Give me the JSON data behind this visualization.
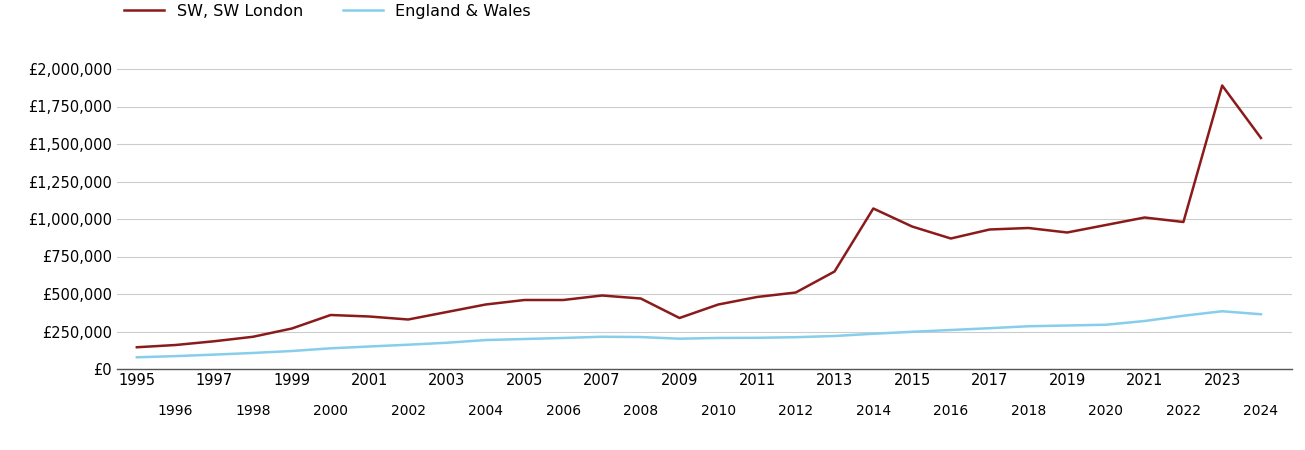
{
  "sw_london": {
    "years": [
      1995,
      1996,
      1997,
      1998,
      1999,
      2000,
      2001,
      2002,
      2003,
      2004,
      2005,
      2006,
      2007,
      2008,
      2009,
      2010,
      2011,
      2012,
      2013,
      2014,
      2015,
      2016,
      2017,
      2018,
      2019,
      2020,
      2021,
      2022,
      2023,
      2024
    ],
    "values": [
      145000,
      160000,
      185000,
      215000,
      270000,
      360000,
      350000,
      330000,
      380000,
      430000,
      460000,
      460000,
      490000,
      470000,
      340000,
      430000,
      480000,
      510000,
      650000,
      1070000,
      950000,
      870000,
      930000,
      940000,
      910000,
      960000,
      1010000,
      980000,
      1890000,
      1540000
    ]
  },
  "england_wales": {
    "years": [
      1995,
      1996,
      1997,
      1998,
      1999,
      2000,
      2001,
      2002,
      2003,
      2004,
      2005,
      2006,
      2007,
      2008,
      2009,
      2010,
      2011,
      2012,
      2013,
      2014,
      2015,
      2016,
      2017,
      2018,
      2019,
      2020,
      2021,
      2022,
      2023,
      2024
    ],
    "values": [
      78000,
      86000,
      96000,
      107000,
      120000,
      138000,
      150000,
      162000,
      175000,
      193000,
      200000,
      207000,
      215000,
      213000,
      202000,
      207000,
      208000,
      212000,
      220000,
      235000,
      248000,
      260000,
      272000,
      285000,
      290000,
      295000,
      320000,
      355000,
      385000,
      365000
    ]
  },
  "sw_london_color": "#8B1A1A",
  "england_wales_color": "#87CEEB",
  "sw_london_label": "SW, SW London",
  "england_wales_label": "England & Wales",
  "ylim": [
    0,
    2100000
  ],
  "ytick_labels": [
    "£0",
    "£250,000",
    "£500,000",
    "£750,000",
    "£1,000,000",
    "£1,250,000",
    "£1,500,000",
    "£1,750,000",
    "£2,000,000"
  ],
  "ytick_values": [
    0,
    250000,
    500000,
    750000,
    1000000,
    1250000,
    1500000,
    1750000,
    2000000
  ],
  "xticks_odd": [
    1995,
    1997,
    1999,
    2001,
    2003,
    2005,
    2007,
    2009,
    2011,
    2013,
    2015,
    2017,
    2019,
    2021,
    2023
  ],
  "xticks_even": [
    1996,
    1998,
    2000,
    2002,
    2004,
    2006,
    2008,
    2010,
    2012,
    2014,
    2016,
    2018,
    2020,
    2022,
    2024
  ],
  "background_color": "#ffffff",
  "grid_color": "#cccccc",
  "line_width": 1.8,
  "legend_fontsize": 11.5,
  "tick_fontsize": 10.5,
  "xlim": [
    1994.5,
    2024.8
  ]
}
